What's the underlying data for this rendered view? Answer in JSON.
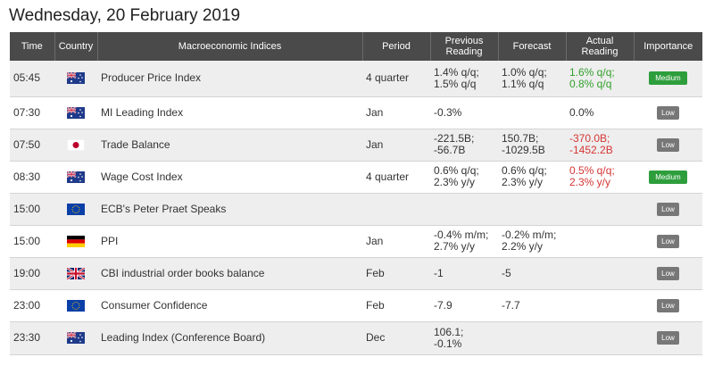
{
  "header": {
    "date": "Wednesday, 20 February 2019"
  },
  "columns": {
    "time": "Time",
    "country": "Country",
    "indices": "Macroeconomic Indices",
    "period": "Period",
    "previous": "Previous Reading",
    "forecast": "Forecast",
    "actual": "Actual Reading",
    "importance": "Importance"
  },
  "colors": {
    "header_bg": "#4a4a4a",
    "row_alt": "#eeeeee",
    "negative": "#d63535",
    "positive": "#33a02c",
    "medium_badge": "#2e9e3c",
    "low_badge": "#777777"
  },
  "rows": [
    {
      "time": "05:45",
      "country": "nz-flag-icon",
      "name": "Producer Price Index",
      "period": "4 quarter",
      "previous": [
        "1.4% q/q;",
        "1.5% q/q"
      ],
      "forecast": [
        "1.0% q/q;",
        "1.1% q/q"
      ],
      "actual": [
        "1.6% q/q;",
        "0.8% q/q"
      ],
      "actual_tone": "pos",
      "importance": "Medium"
    },
    {
      "time": "07:30",
      "country": "au-flag-icon",
      "name": "MI Leading Index",
      "period": "Jan",
      "previous": [
        "-0.3%"
      ],
      "forecast": [],
      "actual": [
        "0.0%"
      ],
      "actual_tone": "",
      "importance": "Low"
    },
    {
      "time": "07:50",
      "country": "jp-flag-icon",
      "name": "Trade Balance",
      "period": "Jan",
      "previous": [
        "-221.5B;",
        "-56.7B"
      ],
      "forecast": [
        "150.7B;",
        "-1029.5B"
      ],
      "actual": [
        "-370.0B;",
        "-1452.2B"
      ],
      "actual_tone": "neg",
      "importance": "Low"
    },
    {
      "time": "08:30",
      "country": "au-flag-icon",
      "name": "Wage Cost Index",
      "period": "4 quarter",
      "previous": [
        "0.6% q/q;",
        "2.3% y/y"
      ],
      "forecast": [
        "0.6% q/q;",
        "2.3% y/y"
      ],
      "actual": [
        "0.5% q/q;",
        "2.3% y/y"
      ],
      "actual_tone": "neg",
      "importance": "Medium"
    },
    {
      "time": "15:00",
      "country": "eu-flag-icon",
      "name": "ECB's Peter Praet Speaks",
      "period": "",
      "previous": [],
      "forecast": [],
      "actual": [],
      "actual_tone": "",
      "importance": "Low"
    },
    {
      "time": "15:00",
      "country": "de-flag-icon",
      "name": "PPI",
      "period": "Jan",
      "previous": [
        "-0.4% m/m;",
        "2.7% y/y"
      ],
      "forecast": [
        "-0.2% m/m;",
        "2.2% y/y"
      ],
      "actual": [],
      "actual_tone": "",
      "importance": "Low"
    },
    {
      "time": "19:00",
      "country": "gb-flag-icon",
      "name": "CBI industrial order books balance",
      "period": "Feb",
      "previous": [
        "-1"
      ],
      "forecast": [
        "-5"
      ],
      "actual": [],
      "actual_tone": "",
      "importance": "Low"
    },
    {
      "time": "23:00",
      "country": "eu-flag-icon",
      "name": "Consumer Confidence",
      "period": "Feb",
      "previous": [
        "-7.9"
      ],
      "forecast": [
        "-7.7"
      ],
      "actual": [],
      "actual_tone": "",
      "importance": "Low"
    },
    {
      "time": "23:30",
      "country": "au-flag-icon",
      "name": "Leading Index (Conference Board)",
      "period": "Dec",
      "previous": [
        "106.1;",
        "-0.1%"
      ],
      "forecast": [],
      "actual": [],
      "actual_tone": "",
      "importance": "Low"
    }
  ]
}
